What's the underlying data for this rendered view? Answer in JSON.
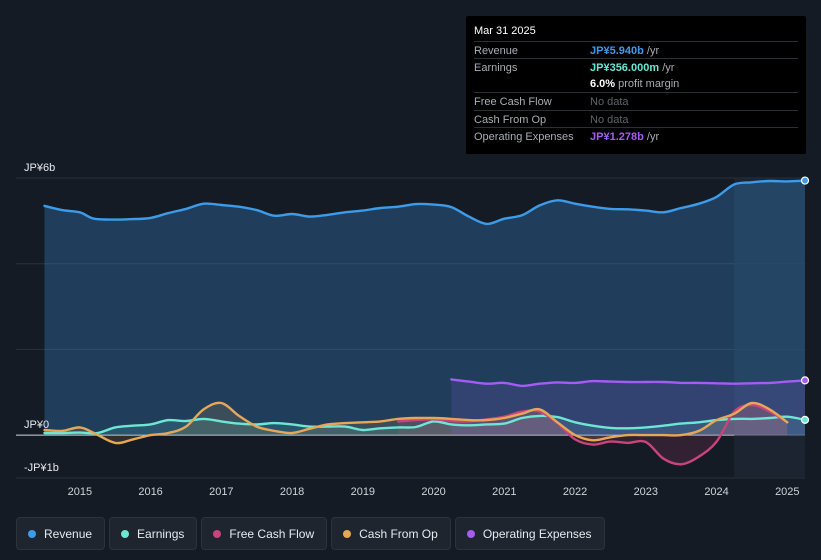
{
  "tooltip": {
    "date": "Mar 31 2025",
    "rows": [
      {
        "label": "Revenue",
        "value": "JP¥5.940b",
        "unit": "/yr",
        "color": "#3d9be9"
      },
      {
        "label": "Earnings",
        "value": "JP¥356.000m",
        "unit": "/yr",
        "color": "#6ee6d4"
      },
      {
        "label": "",
        "value": "6.0%",
        "unit": "profit margin",
        "color": "#ffffff"
      },
      {
        "label": "Free Cash Flow",
        "value": "No data",
        "unit": "",
        "color": "#5f646c"
      },
      {
        "label": "Cash From Op",
        "value": "No data",
        "unit": "",
        "color": "#5f646c"
      },
      {
        "label": "Operating Expenses",
        "value": "JP¥1.278b",
        "unit": "/yr",
        "color": "#a45cf5"
      }
    ]
  },
  "chart_data": {
    "type": "area",
    "y_unit": "JPY billions",
    "ylim": [
      -1,
      6
    ],
    "y_tick_labels": [
      {
        "value": 6,
        "label": "JP¥6b"
      },
      {
        "value": 0,
        "label": "JP¥0"
      },
      {
        "value": -1,
        "label": "-JP¥1b"
      }
    ],
    "x_tick_labels": [
      "2015",
      "2016",
      "2017",
      "2018",
      "2019",
      "2020",
      "2021",
      "2022",
      "2023",
      "2024",
      "2025"
    ],
    "xlim": [
      2014.55,
      2025.25
    ],
    "forecast_start": 2024.25,
    "series": [
      {
        "name": "Revenue",
        "color": "#3d9be9",
        "fill": true,
        "points": [
          [
            2014.5,
            5.35
          ],
          [
            2014.75,
            5.25
          ],
          [
            2015.0,
            5.2
          ],
          [
            2015.2,
            5.05
          ],
          [
            2015.5,
            5.03
          ],
          [
            2015.75,
            5.04
          ],
          [
            2016.0,
            5.07
          ],
          [
            2016.25,
            5.18
          ],
          [
            2016.5,
            5.28
          ],
          [
            2016.75,
            5.4
          ],
          [
            2017.0,
            5.37
          ],
          [
            2017.25,
            5.33
          ],
          [
            2017.5,
            5.25
          ],
          [
            2017.75,
            5.12
          ],
          [
            2018.0,
            5.16
          ],
          [
            2018.25,
            5.1
          ],
          [
            2018.5,
            5.14
          ],
          [
            2018.75,
            5.2
          ],
          [
            2019.0,
            5.24
          ],
          [
            2019.25,
            5.3
          ],
          [
            2019.5,
            5.33
          ],
          [
            2019.75,
            5.39
          ],
          [
            2020.0,
            5.38
          ],
          [
            2020.25,
            5.32
          ],
          [
            2020.5,
            5.1
          ],
          [
            2020.75,
            4.93
          ],
          [
            2021.0,
            5.05
          ],
          [
            2021.25,
            5.13
          ],
          [
            2021.5,
            5.36
          ],
          [
            2021.75,
            5.48
          ],
          [
            2022.0,
            5.4
          ],
          [
            2022.25,
            5.33
          ],
          [
            2022.5,
            5.28
          ],
          [
            2022.75,
            5.27
          ],
          [
            2023.0,
            5.24
          ],
          [
            2023.25,
            5.2
          ],
          [
            2023.5,
            5.3
          ],
          [
            2023.75,
            5.4
          ],
          [
            2024.0,
            5.56
          ],
          [
            2024.25,
            5.85
          ],
          [
            2024.5,
            5.9
          ],
          [
            2024.75,
            5.93
          ],
          [
            2025.0,
            5.92
          ],
          [
            2025.25,
            5.94
          ]
        ]
      },
      {
        "name": "Earnings",
        "color": "#6ee6d4",
        "fill": true,
        "points": [
          [
            2014.5,
            0.05
          ],
          [
            2014.75,
            0.05
          ],
          [
            2015.0,
            0.06
          ],
          [
            2015.25,
            0.05
          ],
          [
            2015.5,
            0.18
          ],
          [
            2015.75,
            0.22
          ],
          [
            2016.0,
            0.25
          ],
          [
            2016.25,
            0.35
          ],
          [
            2016.5,
            0.33
          ],
          [
            2016.75,
            0.38
          ],
          [
            2017.0,
            0.32
          ],
          [
            2017.25,
            0.27
          ],
          [
            2017.5,
            0.25
          ],
          [
            2017.75,
            0.28
          ],
          [
            2018.0,
            0.25
          ],
          [
            2018.25,
            0.2
          ],
          [
            2018.5,
            0.2
          ],
          [
            2018.75,
            0.2
          ],
          [
            2019.0,
            0.12
          ],
          [
            2019.25,
            0.16
          ],
          [
            2019.5,
            0.18
          ],
          [
            2019.75,
            0.19
          ],
          [
            2020.0,
            0.32
          ],
          [
            2020.25,
            0.25
          ],
          [
            2020.5,
            0.23
          ],
          [
            2020.75,
            0.25
          ],
          [
            2021.0,
            0.27
          ],
          [
            2021.25,
            0.4
          ],
          [
            2021.5,
            0.45
          ],
          [
            2021.75,
            0.42
          ],
          [
            2022.0,
            0.3
          ],
          [
            2022.25,
            0.22
          ],
          [
            2022.5,
            0.17
          ],
          [
            2022.75,
            0.16
          ],
          [
            2023.0,
            0.18
          ],
          [
            2023.25,
            0.22
          ],
          [
            2023.5,
            0.27
          ],
          [
            2023.75,
            0.3
          ],
          [
            2024.0,
            0.35
          ],
          [
            2024.25,
            0.38
          ],
          [
            2024.5,
            0.38
          ],
          [
            2024.75,
            0.4
          ],
          [
            2025.0,
            0.43
          ],
          [
            2025.25,
            0.356
          ]
        ]
      },
      {
        "name": "Free Cash Flow",
        "color": "#c8447a",
        "fill": true,
        "points": [
          [
            2019.5,
            0.32
          ],
          [
            2019.75,
            0.35
          ],
          [
            2020.0,
            0.37
          ],
          [
            2020.25,
            0.33
          ],
          [
            2020.5,
            0.32
          ],
          [
            2020.75,
            0.37
          ],
          [
            2021.0,
            0.43
          ],
          [
            2021.25,
            0.55
          ],
          [
            2021.5,
            0.55
          ],
          [
            2021.75,
            0.28
          ],
          [
            2022.0,
            -0.1
          ],
          [
            2022.25,
            -0.22
          ],
          [
            2022.5,
            -0.15
          ],
          [
            2022.75,
            -0.18
          ],
          [
            2023.0,
            -0.16
          ],
          [
            2023.25,
            -0.55
          ],
          [
            2023.5,
            -0.68
          ],
          [
            2023.75,
            -0.5
          ],
          [
            2024.0,
            -0.15
          ],
          [
            2024.25,
            0.55
          ],
          [
            2024.5,
            0.7
          ],
          [
            2024.75,
            0.55
          ],
          [
            2025.0,
            0.3
          ]
        ]
      },
      {
        "name": "Cash From Op",
        "color": "#e6a857",
        "fill": true,
        "points": [
          [
            2014.5,
            0.12
          ],
          [
            2014.75,
            0.1
          ],
          [
            2015.0,
            0.18
          ],
          [
            2015.2,
            0.05
          ],
          [
            2015.5,
            -0.18
          ],
          [
            2015.75,
            -0.1
          ],
          [
            2016.0,
            0.0
          ],
          [
            2016.25,
            0.05
          ],
          [
            2016.5,
            0.2
          ],
          [
            2016.75,
            0.6
          ],
          [
            2017.0,
            0.75
          ],
          [
            2017.25,
            0.45
          ],
          [
            2017.5,
            0.2
          ],
          [
            2017.75,
            0.1
          ],
          [
            2018.0,
            0.05
          ],
          [
            2018.25,
            0.15
          ],
          [
            2018.5,
            0.25
          ],
          [
            2018.75,
            0.28
          ],
          [
            2019.0,
            0.3
          ],
          [
            2019.25,
            0.32
          ],
          [
            2019.5,
            0.38
          ],
          [
            2019.75,
            0.4
          ],
          [
            2020.0,
            0.4
          ],
          [
            2020.25,
            0.38
          ],
          [
            2020.5,
            0.35
          ],
          [
            2020.75,
            0.35
          ],
          [
            2021.0,
            0.4
          ],
          [
            2021.25,
            0.5
          ],
          [
            2021.5,
            0.6
          ],
          [
            2021.75,
            0.3
          ],
          [
            2022.0,
            0.0
          ],
          [
            2022.25,
            -0.12
          ],
          [
            2022.5,
            -0.05
          ],
          [
            2022.75,
            0.0
          ],
          [
            2023.0,
            0.0
          ],
          [
            2023.25,
            0.0
          ],
          [
            2023.5,
            0.0
          ],
          [
            2023.75,
            0.1
          ],
          [
            2024.0,
            0.35
          ],
          [
            2024.25,
            0.5
          ],
          [
            2024.5,
            0.75
          ],
          [
            2024.75,
            0.6
          ],
          [
            2025.0,
            0.3
          ]
        ]
      },
      {
        "name": "Operating Expenses",
        "color": "#a45cf5",
        "fill": true,
        "points": [
          [
            2020.25,
            1.3
          ],
          [
            2020.5,
            1.25
          ],
          [
            2020.75,
            1.2
          ],
          [
            2021.0,
            1.22
          ],
          [
            2021.25,
            1.15
          ],
          [
            2021.5,
            1.2
          ],
          [
            2021.75,
            1.23
          ],
          [
            2022.0,
            1.22
          ],
          [
            2022.25,
            1.26
          ],
          [
            2022.5,
            1.25
          ],
          [
            2022.75,
            1.24
          ],
          [
            2023.0,
            1.24
          ],
          [
            2023.25,
            1.24
          ],
          [
            2023.5,
            1.22
          ],
          [
            2023.75,
            1.22
          ],
          [
            2024.0,
            1.21
          ],
          [
            2024.25,
            1.2
          ],
          [
            2024.5,
            1.21
          ],
          [
            2024.75,
            1.22
          ],
          [
            2025.0,
            1.25
          ],
          [
            2025.25,
            1.278
          ]
        ]
      }
    ]
  },
  "legend": [
    {
      "label": "Revenue",
      "color": "#3d9be9"
    },
    {
      "label": "Earnings",
      "color": "#6ee6d4"
    },
    {
      "label": "Free Cash Flow",
      "color": "#c8447a"
    },
    {
      "label": "Cash From Op",
      "color": "#e6a857"
    },
    {
      "label": "Operating Expenses",
      "color": "#a45cf5"
    }
  ]
}
